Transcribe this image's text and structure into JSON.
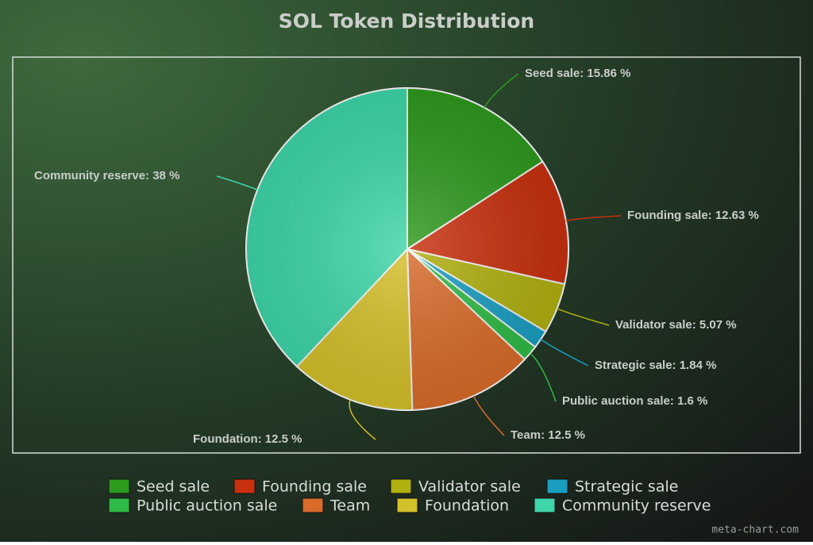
{
  "chart_data": {
    "type": "pie",
    "title": "SOL Token Distribution",
    "categories": [
      "Seed sale",
      "Founding sale",
      "Validator sale",
      "Strategic sale",
      "Public auction sale",
      "Team",
      "Foundation",
      "Community reserve"
    ],
    "values": [
      15.86,
      12.63,
      5.07,
      1.84,
      1.6,
      12.5,
      12.5,
      38
    ],
    "value_labels": [
      "Seed sale: 15.86 %",
      "Founding sale: 12.63 %",
      "Validator sale: 5.07 %",
      "Strategic sale: 1.84 %",
      "Public auction sale: 1.6 %",
      "Team: 12.5 %",
      "Foundation: 12.5 %",
      "Community reserve: 38 %"
    ],
    "colors": [
      "#2e9a1e",
      "#c8300e",
      "#b0b010",
      "#1a9ec0",
      "#2ebb45",
      "#d86b2a",
      "#d4c02a",
      "#3ed6a8"
    ],
    "legend": "bottom",
    "watermark": "meta-chart.com"
  }
}
